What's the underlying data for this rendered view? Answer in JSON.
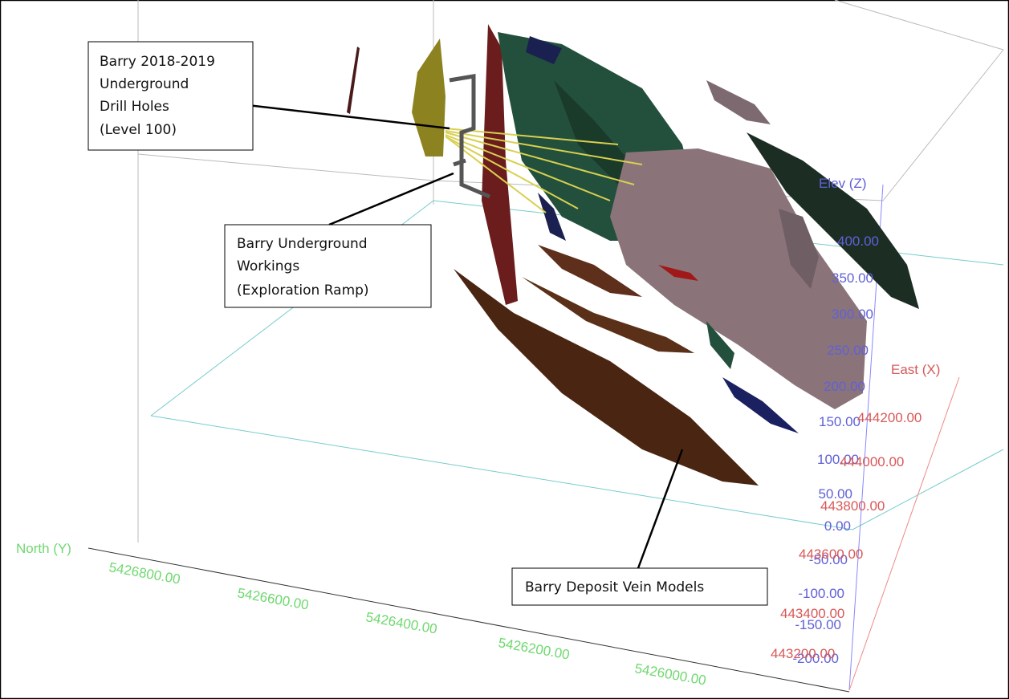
{
  "callouts": {
    "drill_holes": {
      "lines": [
        "Barry 2018-2019",
        "Underground",
        "Drill Holes",
        "(Level 100)"
      ]
    },
    "workings": {
      "lines": [
        "Barry Underground",
        "Workings",
        "(Exploration Ramp)"
      ]
    },
    "veins": {
      "lines": [
        "Barry Deposit Vein Models"
      ]
    }
  },
  "axes": {
    "z": {
      "label": "Elev (Z)",
      "ticks": [
        "400.00",
        "350.00",
        "300.00",
        "250.00",
        "200.00",
        "150.00",
        "100.00",
        "50.00",
        "0.00",
        "-50.00",
        "-100.00",
        "-150.00",
        "-200.00"
      ]
    },
    "x": {
      "label": "East (X)",
      "ticks": [
        "444200.00",
        "444000.00",
        "443800.00",
        "443600.00",
        "443400.00",
        "443200.00"
      ]
    },
    "y": {
      "label": "North (Y)",
      "ticks": [
        "5426800.00",
        "5426600.00",
        "5426400.00",
        "5426200.00",
        "5426000.00"
      ]
    }
  }
}
